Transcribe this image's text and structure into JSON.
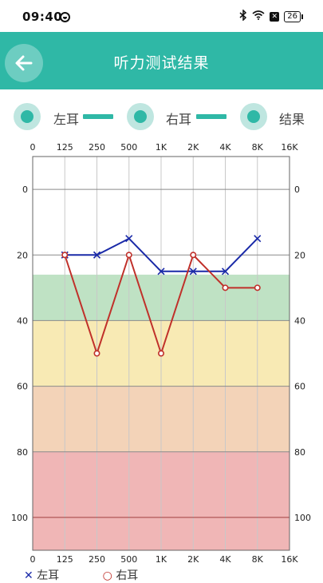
{
  "status_bar": {
    "time": "09:40",
    "icons": [
      "bluetooth-icon",
      "wifi-icon",
      "x-box-icon",
      "battery-icon"
    ],
    "battery": "26"
  },
  "app_bar": {
    "back_icon": "arrow-left-icon",
    "title": "听力测试结果"
  },
  "legend": {
    "left_ear": "左耳",
    "right_ear": "右耳",
    "result": "结果",
    "accent": "#2fb8a6"
  },
  "chart_data": {
    "type": "line",
    "title": "",
    "x_labels_top": [
      "0",
      "125",
      "250",
      "500",
      "1K",
      "2K",
      "4K",
      "8K",
      "16K"
    ],
    "x_labels_bottom": [
      "0",
      "125",
      "250",
      "500",
      "1K",
      "2K",
      "4K",
      "8K",
      "16K"
    ],
    "y_labels": [
      "0",
      "20",
      "40",
      "60",
      "80",
      "100"
    ],
    "ylim": [
      -10,
      110
    ],
    "y_inverted": true,
    "bands": [
      {
        "from": 26,
        "to": 40,
        "color": "#bfe2c4"
      },
      {
        "from": 40,
        "to": 60,
        "color": "#f8eab4"
      },
      {
        "from": 60,
        "to": 80,
        "color": "#f3d3b8"
      },
      {
        "from": 80,
        "to": 110,
        "color": "#f0b6b6"
      }
    ],
    "series": [
      {
        "marker": "x",
        "color": "#1a2aa8",
        "x": [
          "125",
          "250",
          "500",
          "1K",
          "2K",
          "4K",
          "8K"
        ],
        "values": [
          20,
          20,
          15,
          25,
          25,
          25,
          15
        ]
      },
      {
        "marker": "o",
        "color": "#c0302a",
        "x": [
          "125",
          "250",
          "500",
          "1K",
          "2K",
          "4K",
          "8K"
        ],
        "values": [
          20,
          50,
          20,
          50,
          20,
          30,
          30
        ]
      }
    ]
  },
  "bottom_legend": {
    "left_ear": "左耳",
    "right_ear": "右耳"
  }
}
